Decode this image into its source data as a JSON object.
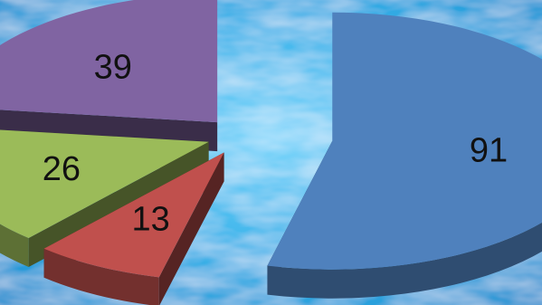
{
  "chart_data": {
    "type": "pie",
    "style": "3d exploded",
    "slices": [
      {
        "label": "91",
        "value": 91,
        "color": "#4f81bd"
      },
      {
        "label": "13",
        "value": 13,
        "color": "#c0504d"
      },
      {
        "label": "26",
        "value": 26,
        "color": "#9bbb59"
      },
      {
        "label": "39",
        "value": 39,
        "color": "#8064a2"
      }
    ],
    "title": "",
    "legend": "none"
  },
  "background": {
    "base_color": "#2fa6e0",
    "texture": "watercolor-blue"
  }
}
